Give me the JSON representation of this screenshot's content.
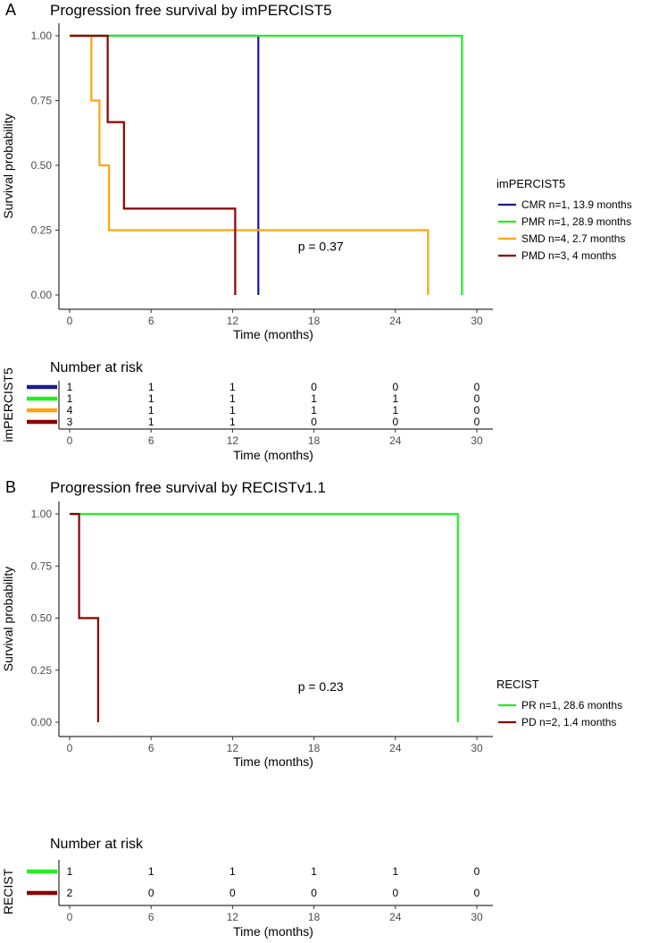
{
  "colors": {
    "CMR": "#1a1a8c",
    "PMR": "#22ee22",
    "SMD": "#ffa510",
    "PMD": "#8b0000",
    "axis": "#000000",
    "tick_label": "#4d4d4d"
  },
  "chart_data": [
    {
      "type": "line",
      "subtype": "kaplan-meier step",
      "panel_label": "A",
      "title": "Progression free survival by imPERCIST5",
      "xlabel": "Time (months)",
      "ylabel": "Survival probability",
      "xlim": [
        0,
        30
      ],
      "ylim": [
        0,
        1
      ],
      "xticks": [
        "0",
        "6",
        "12",
        "18",
        "24",
        "30"
      ],
      "yticks": [
        "0.00",
        "0.25",
        "0.50",
        "0.75",
        "1.00"
      ],
      "xtick_values": [
        0,
        6,
        12,
        18,
        24,
        30
      ],
      "ytick_values": [
        0,
        0.25,
        0.5,
        0.75,
        1
      ],
      "annotation": "p = 0.37",
      "annotation_pos": [
        18.5,
        0.25
      ],
      "legend_title": "imPERCIST5",
      "legend_position": "right",
      "series": [
        {
          "name": "CMR n=1, 13.9 months",
          "color": "#1a1a8c",
          "points": [
            [
              0,
              1
            ],
            [
              13.9,
              1
            ],
            [
              13.9,
              0
            ]
          ]
        },
        {
          "name": "PMR n=1, 28.9 months",
          "color": "#22ee22",
          "points": [
            [
              0,
              1
            ],
            [
              28.9,
              1
            ],
            [
              28.9,
              0
            ]
          ]
        },
        {
          "name": "SMD n=4, 2.7 months",
          "color": "#ffa510",
          "points": [
            [
              0,
              1
            ],
            [
              1.6,
              1
            ],
            [
              1.6,
              0.75
            ],
            [
              2.2,
              0.75
            ],
            [
              2.2,
              0.5
            ],
            [
              2.9,
              0.5
            ],
            [
              2.9,
              0.25
            ],
            [
              26.4,
              0.25
            ],
            [
              26.4,
              0
            ]
          ]
        },
        {
          "name": "PMD n=3, 4 months",
          "color": "#8b0000",
          "points": [
            [
              0,
              1
            ],
            [
              2.8,
              1
            ],
            [
              2.8,
              0.667
            ],
            [
              4.0,
              0.667
            ],
            [
              4.0,
              0.333
            ],
            [
              12.2,
              0.333
            ],
            [
              12.2,
              0
            ]
          ]
        }
      ],
      "risk_table": {
        "title": "Number at risk",
        "ylabel": "imPERCIST5",
        "xlabel": "Time (months)",
        "times": [
          0,
          6,
          12,
          18,
          24,
          30
        ],
        "rows": [
          {
            "color": "#1a1a8c",
            "counts": [
              "1",
              "1",
              "1",
              "0",
              "0",
              "0"
            ]
          },
          {
            "color": "#22ee22",
            "counts": [
              "1",
              "1",
              "1",
              "1",
              "1",
              "0"
            ]
          },
          {
            "color": "#ffa510",
            "counts": [
              "4",
              "1",
              "1",
              "1",
              "1",
              "0"
            ]
          },
          {
            "color": "#8b0000",
            "counts": [
              "3",
              "1",
              "1",
              "0",
              "0",
              "0"
            ]
          }
        ]
      }
    },
    {
      "type": "line",
      "subtype": "kaplan-meier step",
      "panel_label": "B",
      "title": "Progression free survival by RECISTv1.1",
      "xlabel": "Time (months)",
      "ylabel": "Survival probability",
      "xlim": [
        0,
        30
      ],
      "ylim": [
        0,
        1
      ],
      "xticks": [
        "0",
        "6",
        "12",
        "18",
        "24",
        "30"
      ],
      "yticks": [
        "0.00",
        "0.25",
        "0.50",
        "0.75",
        "1.00"
      ],
      "xtick_values": [
        0,
        6,
        12,
        18,
        24,
        30
      ],
      "ytick_values": [
        0,
        0.25,
        0.5,
        0.75,
        1
      ],
      "annotation": "p = 0.23",
      "annotation_pos": [
        18.5,
        0.25
      ],
      "legend_title": "RECIST",
      "legend_position": "right",
      "series": [
        {
          "name": "PR n=1, 28.6 months",
          "color": "#22ee22",
          "points": [
            [
              0,
              1
            ],
            [
              28.6,
              1
            ],
            [
              28.6,
              0
            ]
          ]
        },
        {
          "name": "PD n=2, 1.4 months",
          "color": "#8b0000",
          "points": [
            [
              0,
              1
            ],
            [
              0.7,
              1
            ],
            [
              0.7,
              0.5
            ],
            [
              2.1,
              0.5
            ],
            [
              2.1,
              0
            ]
          ]
        }
      ],
      "risk_table": {
        "title": "Number at risk",
        "ylabel": "RECIST",
        "xlabel": "Time (months)",
        "times": [
          0,
          6,
          12,
          18,
          24,
          30
        ],
        "rows": [
          {
            "color": "#22ee22",
            "counts": [
              "1",
              "1",
              "1",
              "1",
              "1",
              "0"
            ]
          },
          {
            "color": "#8b0000",
            "counts": [
              "2",
              "0",
              "0",
              "0",
              "0",
              "0"
            ]
          }
        ]
      }
    }
  ]
}
